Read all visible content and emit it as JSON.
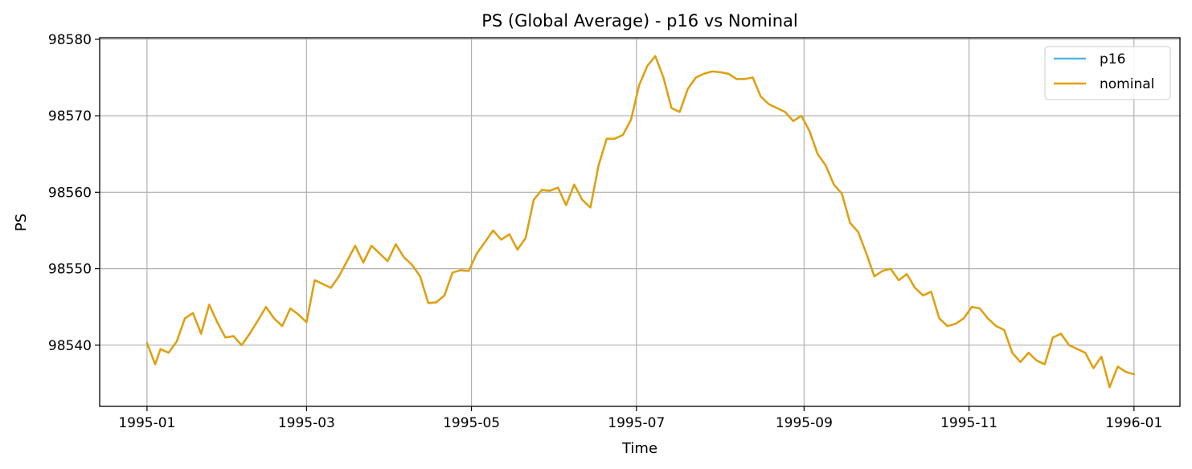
{
  "chart_data": {
    "type": "line",
    "title": "PS (Global Average) - p16 vs Nominal",
    "xlabel": "Time",
    "ylabel": "PS",
    "x_ticks": [
      "1995-01",
      "1995-03",
      "1995-05",
      "1995-07",
      "1995-09",
      "1995-11",
      "1996-01"
    ],
    "x_tick_positions_days": [
      0,
      59,
      120,
      181,
      243,
      304,
      365
    ],
    "y_ticks": [
      98540,
      98550,
      98560,
      98570,
      98580
    ],
    "xlim_days": [
      -17.5,
      382
    ],
    "ylim": [
      98532,
      98580.2
    ],
    "grid": true,
    "legend_position": "top-right",
    "legend": [
      {
        "label": "p16",
        "color": "#56b4e9"
      },
      {
        "label": "nominal",
        "color": "#e69f00"
      }
    ],
    "series": [
      {
        "name": "p16",
        "color": "#56b4e9",
        "x_days": [
          0,
          3,
          5,
          8,
          11,
          14,
          17,
          20,
          23,
          26,
          29,
          32,
          35,
          38,
          41,
          44,
          47,
          50,
          53,
          56,
          59,
          62,
          65,
          68,
          71,
          74,
          77,
          80,
          83,
          86,
          89,
          92,
          95,
          98,
          101,
          104,
          107,
          110,
          113,
          116,
          119,
          122,
          125,
          128,
          131,
          134,
          137,
          140,
          143,
          146,
          149,
          152,
          155,
          158,
          161,
          164,
          167,
          170,
          173,
          176,
          179,
          182,
          185,
          188,
          191,
          194,
          197,
          200,
          203,
          206,
          209,
          212,
          215,
          218,
          221,
          224,
          227,
          230,
          233,
          236,
          239,
          242,
          245,
          248,
          251,
          254,
          257,
          260,
          263,
          266,
          269,
          272,
          275,
          278,
          281,
          284,
          287,
          290,
          293,
          296,
          299,
          302,
          305,
          308,
          311,
          314,
          317,
          320,
          323,
          326,
          329,
          332,
          335,
          338,
          341,
          344,
          347,
          350,
          353,
          356,
          359,
          362,
          365
        ],
        "values": [
          98540.3,
          98537.5,
          98539.5,
          98539.0,
          98540.5,
          98543.5,
          98544.2,
          98541.5,
          98545.3,
          98543.0,
          98541.0,
          98541.2,
          98540.0,
          98541.5,
          98543.2,
          98545.0,
          98543.5,
          98542.5,
          98544.8,
          98544.0,
          98543.0,
          98548.5,
          98548.0,
          98547.5,
          98549.0,
          98551.0,
          98553.0,
          98550.8,
          98553.0,
          98552.0,
          98551.0,
          98553.2,
          98551.5,
          98550.5,
          98549.0,
          98545.5,
          98545.6,
          98546.5,
          98549.5,
          98549.8,
          98549.7,
          98552.0,
          98553.5,
          98555.0,
          98553.8,
          98554.5,
          98552.5,
          98554.0,
          98559.0,
          98560.3,
          98560.2,
          98560.6,
          98558.3,
          98561.0,
          98559.0,
          98558.0,
          98563.5,
          98567.0,
          98567.0,
          98567.5,
          98569.5,
          98574.0,
          98576.5,
          98577.8,
          98575.0,
          98571.0,
          98570.5,
          98573.5,
          98575.0,
          98575.5,
          98575.8,
          98575.7,
          98575.5,
          98574.8,
          98574.8,
          98575.0,
          98572.5,
          98571.5,
          98571.0,
          98570.5,
          98569.3,
          98570.0,
          98568.0,
          98565.0,
          98563.5,
          98561.0,
          98559.8,
          98556.0,
          98554.8,
          98552.0,
          98549.0,
          98549.7,
          98550.0,
          98548.5,
          98549.3,
          98547.5,
          98546.5,
          98547.0,
          98543.5,
          98542.5,
          98542.8,
          98543.5,
          98545.0,
          98544.8,
          98543.5,
          98542.5,
          98542.0,
          98539.0,
          98537.8,
          98539.0,
          98538.0,
          98537.5,
          98541.0,
          98541.5,
          98540.0,
          98539.5,
          98539.0,
          98537.0,
          98538.5,
          98534.5,
          98537.2,
          98536.5,
          98536.2
        ]
      },
      {
        "name": "nominal",
        "color": "#e69f00",
        "x_days": [
          0,
          3,
          5,
          8,
          11,
          14,
          17,
          20,
          23,
          26,
          29,
          32,
          35,
          38,
          41,
          44,
          47,
          50,
          53,
          56,
          59,
          62,
          65,
          68,
          71,
          74,
          77,
          80,
          83,
          86,
          89,
          92,
          95,
          98,
          101,
          104,
          107,
          110,
          113,
          116,
          119,
          122,
          125,
          128,
          131,
          134,
          137,
          140,
          143,
          146,
          149,
          152,
          155,
          158,
          161,
          164,
          167,
          170,
          173,
          176,
          179,
          182,
          185,
          188,
          191,
          194,
          197,
          200,
          203,
          206,
          209,
          212,
          215,
          218,
          221,
          224,
          227,
          230,
          233,
          236,
          239,
          242,
          245,
          248,
          251,
          254,
          257,
          260,
          263,
          266,
          269,
          272,
          275,
          278,
          281,
          284,
          287,
          290,
          293,
          296,
          299,
          302,
          305,
          308,
          311,
          314,
          317,
          320,
          323,
          326,
          329,
          332,
          335,
          338,
          341,
          344,
          347,
          350,
          353,
          356,
          359,
          362,
          365
        ],
        "values": [
          98540.3,
          98537.5,
          98539.5,
          98539.0,
          98540.5,
          98543.5,
          98544.2,
          98541.5,
          98545.3,
          98543.0,
          98541.0,
          98541.2,
          98540.0,
          98541.5,
          98543.2,
          98545.0,
          98543.5,
          98542.5,
          98544.8,
          98544.0,
          98543.0,
          98548.5,
          98548.0,
          98547.5,
          98549.0,
          98551.0,
          98553.0,
          98550.8,
          98553.0,
          98552.0,
          98551.0,
          98553.2,
          98551.5,
          98550.5,
          98549.0,
          98545.5,
          98545.6,
          98546.5,
          98549.5,
          98549.8,
          98549.7,
          98552.0,
          98553.5,
          98555.0,
          98553.8,
          98554.5,
          98552.5,
          98554.0,
          98559.0,
          98560.3,
          98560.2,
          98560.6,
          98558.3,
          98561.0,
          98559.0,
          98558.0,
          98563.5,
          98567.0,
          98567.0,
          98567.5,
          98569.5,
          98574.0,
          98576.5,
          98577.8,
          98575.0,
          98571.0,
          98570.5,
          98573.5,
          98575.0,
          98575.5,
          98575.8,
          98575.7,
          98575.5,
          98574.8,
          98574.8,
          98575.0,
          98572.5,
          98571.5,
          98571.0,
          98570.5,
          98569.3,
          98570.0,
          98568.0,
          98565.0,
          98563.5,
          98561.0,
          98559.8,
          98556.0,
          98554.8,
          98552.0,
          98549.0,
          98549.7,
          98550.0,
          98548.5,
          98549.3,
          98547.5,
          98546.5,
          98547.0,
          98543.5,
          98542.5,
          98542.8,
          98543.5,
          98545.0,
          98544.8,
          98543.5,
          98542.5,
          98542.0,
          98539.0,
          98537.8,
          98539.0,
          98538.0,
          98537.5,
          98541.0,
          98541.5,
          98540.0,
          98539.5,
          98539.0,
          98537.0,
          98538.5,
          98534.5,
          98537.2,
          98536.5,
          98536.2
        ]
      }
    ]
  }
}
